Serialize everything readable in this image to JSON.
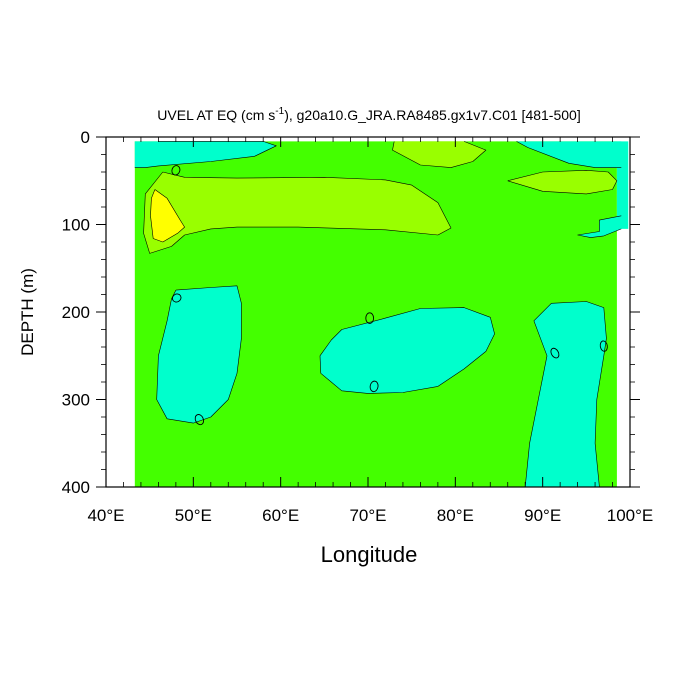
{
  "chart_data": {
    "type": "heatmap",
    "title": "UVEL AT EQ (cm s",
    "title_superscript": "-1",
    "title_rest": "), g20a10.G_JRA.RA8485.gx1v7.C01 [481-500]",
    "xlabel": "Longitude",
    "ylabel": "DEPTH (m)",
    "xlim": [
      40,
      100
    ],
    "ylim": [
      400,
      0
    ],
    "x_ticks": [
      {
        "value": 40,
        "label": "40°E"
      },
      {
        "value": 50,
        "label": "50°E"
      },
      {
        "value": 60,
        "label": "60°E"
      },
      {
        "value": 70,
        "label": "70°E"
      },
      {
        "value": 80,
        "label": "80°E"
      },
      {
        "value": 90,
        "label": "90°E"
      },
      {
        "value": 100,
        "label": "100°E"
      }
    ],
    "y_ticks": [
      {
        "value": 0,
        "label": "0"
      },
      {
        "value": 100,
        "label": "100"
      },
      {
        "value": 200,
        "label": "200"
      },
      {
        "value": 300,
        "label": "300"
      },
      {
        "value": 400,
        "label": "400"
      }
    ],
    "data_extent": {
      "lon": [
        43.3,
        98.5
      ],
      "depth": [
        5,
        400
      ]
    },
    "fill_colors": {
      "negative_weak": "#00ffcc",
      "near_zero": "#44ff00",
      "positive_weak": "#99ff00",
      "positive_strong": "#ffff00"
    },
    "regions": [
      {
        "level": "negative_weak",
        "points": [
          [
            46,
            5
          ],
          [
            52,
            5
          ],
          [
            55,
            5
          ],
          [
            58,
            5
          ],
          [
            59.5,
            10
          ],
          [
            57,
            22
          ],
          [
            52,
            28
          ],
          [
            46,
            33
          ],
          [
            44.5,
            35
          ],
          [
            43.3,
            35
          ],
          [
            43.3,
            5
          ]
        ]
      },
      {
        "level": "positive_weak",
        "points": [
          [
            81,
            5
          ],
          [
            83.5,
            15
          ],
          [
            82,
            28
          ],
          [
            79.5,
            35
          ],
          [
            76,
            32
          ],
          [
            72.8,
            15
          ],
          [
            73,
            5
          ]
        ]
      },
      {
        "level": "negative_weak",
        "points": [
          [
            87,
            5
          ],
          [
            99,
            5
          ],
          [
            99,
            35
          ],
          [
            96,
            35
          ],
          [
            93,
            30
          ],
          [
            88.3,
            12
          ]
        ]
      },
      {
        "level": "positive_weak",
        "points": [
          [
            46.5,
            40
          ],
          [
            49,
            46
          ],
          [
            55,
            47
          ],
          [
            65,
            46
          ],
          [
            72,
            49
          ],
          [
            75,
            55
          ],
          [
            78,
            75
          ],
          [
            79.5,
            104
          ],
          [
            78,
            112
          ],
          [
            72,
            106
          ],
          [
            62,
            103
          ],
          [
            55,
            103
          ],
          [
            52,
            105
          ],
          [
            49,
            112
          ],
          [
            47.5,
            125
          ],
          [
            45,
            133
          ],
          [
            44.3,
            110
          ],
          [
            44.5,
            65
          ]
        ]
      },
      {
        "level": "positive_strong",
        "points": [
          [
            45.6,
            60
          ],
          [
            47,
            70
          ],
          [
            48.5,
            95
          ],
          [
            49,
            103
          ],
          [
            48.2,
            110
          ],
          [
            46.5,
            120
          ],
          [
            45.4,
            116
          ],
          [
            45.1,
            90
          ],
          [
            45.2,
            70
          ]
        ]
      },
      {
        "level": "positive_weak",
        "points": [
          [
            86,
            50
          ],
          [
            90,
            40
          ],
          [
            95,
            38
          ],
          [
            97.5,
            40
          ],
          [
            98.5,
            50
          ],
          [
            98,
            60
          ],
          [
            95,
            65
          ],
          [
            90,
            62
          ]
        ]
      },
      {
        "level": "negative_weak",
        "points": [
          [
            96.5,
            95
          ],
          [
            99,
            90
          ],
          [
            99,
            105
          ],
          [
            97,
            113
          ],
          [
            95.5,
            115
          ],
          [
            94,
            112
          ],
          [
            96.5,
            108
          ]
        ]
      },
      {
        "level": "negative_weak",
        "points": [
          [
            48,
            175
          ],
          [
            52,
            172
          ],
          [
            55,
            170
          ],
          [
            55.5,
            190
          ],
          [
            55.5,
            230
          ],
          [
            55,
            270
          ],
          [
            54,
            300
          ],
          [
            52,
            320
          ],
          [
            50,
            327
          ],
          [
            47,
            322
          ],
          [
            45.8,
            300
          ],
          [
            46,
            250
          ],
          [
            47,
            210
          ],
          [
            47.5,
            185
          ]
        ]
      },
      {
        "level": "negative_weak",
        "points": [
          [
            67,
            220
          ],
          [
            72,
            207
          ],
          [
            76,
            196
          ],
          [
            81,
            195
          ],
          [
            84,
            206
          ],
          [
            84.5,
            225
          ],
          [
            83.5,
            245
          ],
          [
            81,
            265
          ],
          [
            78,
            285
          ],
          [
            74,
            292
          ],
          [
            70,
            293
          ],
          [
            67,
            290
          ],
          [
            64.6,
            270
          ],
          [
            64.5,
            250
          ],
          [
            65.8,
            232
          ]
        ]
      },
      {
        "level": "negative_weak",
        "points": [
          [
            89,
            210
          ],
          [
            91,
            190
          ],
          [
            95,
            188
          ],
          [
            97,
            195
          ],
          [
            97.3,
            230
          ],
          [
            97,
            250
          ],
          [
            96.2,
            300
          ],
          [
            96,
            350
          ],
          [
            96.5,
            400
          ],
          [
            88,
            400
          ],
          [
            88.5,
            350
          ],
          [
            89.5,
            300
          ],
          [
            90.5,
            250
          ]
        ]
      }
    ],
    "contour_lines": [
      [
        [
          46,
          5
        ],
        [
          52,
          5
        ],
        [
          55,
          5
        ],
        [
          58,
          5
        ],
        [
          59.5,
          10
        ],
        [
          57,
          22
        ],
        [
          52,
          28
        ],
        [
          46,
          33
        ],
        [
          44.5,
          35
        ],
        [
          43.3,
          35
        ]
      ],
      [
        [
          81,
          5
        ],
        [
          83.5,
          15
        ],
        [
          82,
          28
        ],
        [
          79.5,
          35
        ],
        [
          76,
          32
        ],
        [
          72.8,
          15
        ],
        [
          73,
          5
        ]
      ],
      [
        [
          87,
          5
        ],
        [
          88.3,
          12
        ],
        [
          93,
          30
        ],
        [
          96,
          35
        ],
        [
          99,
          35
        ]
      ],
      [
        [
          46.5,
          40
        ],
        [
          49,
          46
        ],
        [
          55,
          47
        ],
        [
          65,
          46
        ],
        [
          72,
          49
        ],
        [
          75,
          55
        ],
        [
          78,
          75
        ],
        [
          79.5,
          104
        ],
        [
          78,
          112
        ],
        [
          72,
          106
        ],
        [
          62,
          103
        ],
        [
          55,
          103
        ],
        [
          52,
          105
        ],
        [
          49,
          112
        ],
        [
          47.5,
          125
        ],
        [
          45,
          133
        ],
        [
          44.3,
          110
        ],
        [
          44.5,
          65
        ],
        [
          46.5,
          40
        ]
      ],
      [
        [
          45.6,
          60
        ],
        [
          47,
          70
        ],
        [
          48.5,
          95
        ],
        [
          49,
          103
        ],
        [
          48.2,
          110
        ],
        [
          46.5,
          120
        ],
        [
          45.4,
          116
        ],
        [
          45.1,
          90
        ],
        [
          45.2,
          70
        ],
        [
          45.6,
          60
        ]
      ],
      [
        [
          86,
          50
        ],
        [
          90,
          40
        ],
        [
          95,
          38
        ],
        [
          97.5,
          40
        ],
        [
          98.5,
          50
        ],
        [
          98,
          60
        ],
        [
          95,
          65
        ],
        [
          90,
          62
        ],
        [
          86,
          50
        ]
      ],
      [
        [
          99,
          90
        ],
        [
          96.5,
          95
        ],
        [
          96.5,
          108
        ],
        [
          94,
          112
        ],
        [
          95.5,
          115
        ],
        [
          97,
          113
        ],
        [
          99,
          105
        ]
      ],
      [
        [
          48,
          175
        ],
        [
          52,
          172
        ],
        [
          55,
          170
        ],
        [
          55.5,
          190
        ],
        [
          55.5,
          230
        ],
        [
          55,
          270
        ],
        [
          54,
          300
        ],
        [
          52,
          320
        ],
        [
          50,
          327
        ],
        [
          47,
          322
        ],
        [
          45.8,
          300
        ],
        [
          46,
          250
        ],
        [
          47,
          210
        ],
        [
          47.5,
          185
        ],
        [
          48,
          175
        ]
      ],
      [
        [
          67,
          220
        ],
        [
          72,
          207
        ],
        [
          76,
          196
        ],
        [
          81,
          195
        ],
        [
          84,
          206
        ],
        [
          84.5,
          225
        ],
        [
          83.5,
          245
        ],
        [
          81,
          265
        ],
        [
          78,
          285
        ],
        [
          74,
          292
        ],
        [
          70,
          293
        ],
        [
          67,
          290
        ],
        [
          64.6,
          270
        ],
        [
          64.5,
          250
        ],
        [
          65.8,
          232
        ],
        [
          67,
          220
        ]
      ],
      [
        [
          88,
          400
        ],
        [
          88.5,
          350
        ],
        [
          89.5,
          300
        ],
        [
          90.5,
          250
        ],
        [
          89,
          210
        ],
        [
          91,
          190
        ],
        [
          95,
          188
        ],
        [
          97,
          195
        ],
        [
          97.3,
          230
        ],
        [
          97,
          250
        ],
        [
          96.2,
          300
        ],
        [
          96,
          350
        ],
        [
          96.5,
          400
        ]
      ]
    ],
    "zero_ellipses": [
      {
        "lon": 48,
        "depth": 38,
        "rx": 0.45,
        "ry": 5.5,
        "rotate": 20
      },
      {
        "lon": 48.1,
        "depth": 184,
        "rx": 0.5,
        "ry": 4.5,
        "rotate": -30
      },
      {
        "lon": 50.7,
        "depth": 323,
        "rx": 0.45,
        "ry": 6,
        "rotate": -25
      },
      {
        "lon": 70.2,
        "depth": 207,
        "rx": 0.45,
        "ry": 6,
        "rotate": 0
      },
      {
        "lon": 70.7,
        "depth": 285,
        "rx": 0.45,
        "ry": 6,
        "rotate": 10
      },
      {
        "lon": 91.4,
        "depth": 247,
        "rx": 0.6,
        "ry": 4,
        "rotate": 60
      },
      {
        "lon": 97,
        "depth": 239,
        "rx": 0.6,
        "ry": 4,
        "rotate": 80
      }
    ],
    "grid": false
  }
}
